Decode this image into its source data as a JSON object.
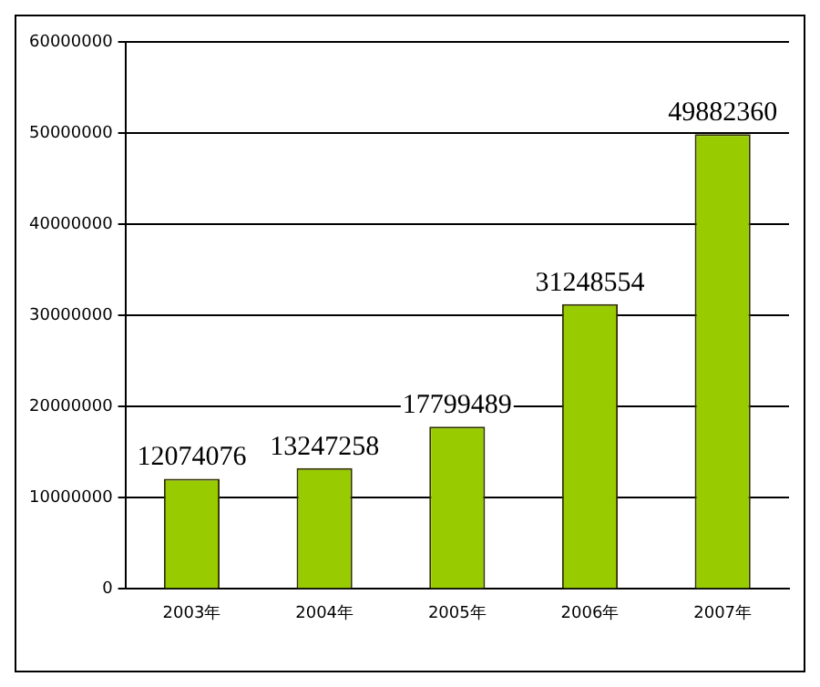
{
  "chart_data": {
    "type": "bar",
    "categories": [
      "2003年",
      "2004年",
      "2005年",
      "2006年",
      "2007年"
    ],
    "values": [
      12074076,
      13247258,
      17799489,
      31248554,
      49882360
    ],
    "color": "#99cc00",
    "ylim": [
      0,
      60000000
    ],
    "yticks": [
      0,
      10000000,
      20000000,
      30000000,
      40000000,
      50000000,
      60000000
    ],
    "grid": "y",
    "data_labels": true,
    "legend": false
  }
}
